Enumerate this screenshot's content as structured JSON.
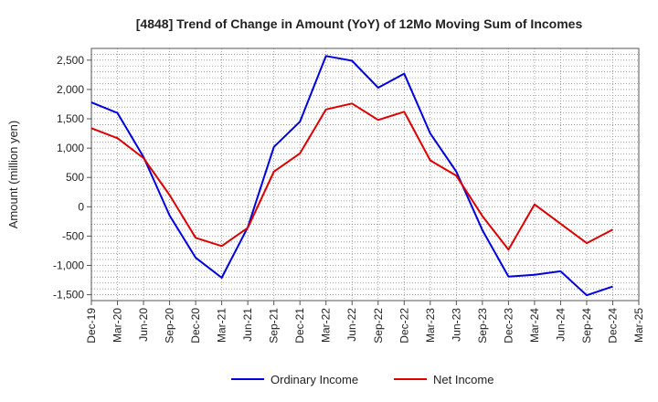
{
  "chart_data": {
    "type": "line",
    "title": "[4848]  Trend of Change in Amount (YoY) of 12Mo Moving Sum of Incomes",
    "xlabel": "",
    "ylabel": "Amount (million yen)",
    "ylim": [
      -1600,
      2700
    ],
    "yticks": [
      -1500,
      -1000,
      -500,
      0,
      500,
      1000,
      1500,
      2000,
      2500
    ],
    "ytick_labels": [
      "-1,500",
      "-1,000",
      "-500",
      "0",
      "500",
      "1,000",
      "1,500",
      "2,000",
      "2,500"
    ],
    "grid": true,
    "legend_position": "bottom",
    "categories": [
      "Dec-19",
      "Mar-20",
      "Jun-20",
      "Sep-20",
      "Dec-20",
      "Mar-21",
      "Jun-21",
      "Sep-21",
      "Dec-21",
      "Mar-22",
      "Jun-22",
      "Sep-22",
      "Dec-22",
      "Mar-23",
      "Jun-23",
      "Sep-23",
      "Dec-23",
      "Mar-24",
      "Jun-24",
      "Sep-24",
      "Dec-24",
      "Mar-25"
    ],
    "series": [
      {
        "name": "Ordinary Income",
        "color": "#0000dd",
        "values": [
          1780,
          1600,
          850,
          -150,
          -870,
          -1210,
          -350,
          1020,
          1450,
          2570,
          2490,
          2030,
          2270,
          1250,
          600,
          -400,
          -1190,
          -1160,
          -1100,
          -1510,
          -1360,
          null
        ]
      },
      {
        "name": "Net Income",
        "color": "#dd0000",
        "values": [
          1340,
          1170,
          830,
          200,
          -530,
          -670,
          -360,
          600,
          910,
          1660,
          1760,
          1480,
          1620,
          790,
          530,
          -160,
          -730,
          40,
          -290,
          -620,
          -390,
          null
        ]
      }
    ]
  }
}
